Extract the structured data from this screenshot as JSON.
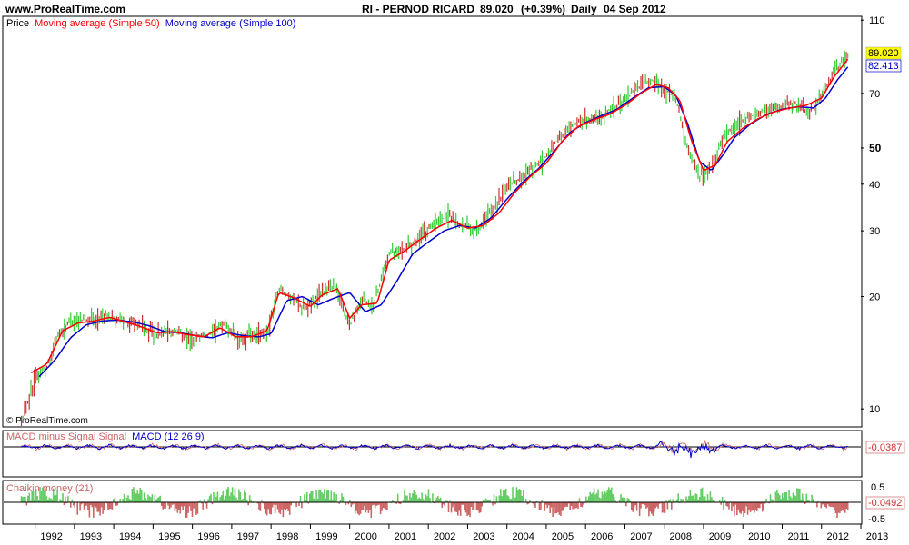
{
  "header": {
    "site": "www.ProRealTime.com",
    "instrument": "RI - PERNOD RICARD",
    "price": "89.020",
    "change": "(+0.39%)",
    "period": "Daily",
    "date": "04 Sep 2012"
  },
  "watermark": "© ProRealTime.com",
  "colors": {
    "ma50": "#ff0000",
    "ma100": "#0000cc",
    "up": "#33cc33",
    "down": "#cc3333",
    "macd_signal_diff": "#cc6666",
    "macd": "#0000cc",
    "chaikin_pos": "#66cc66",
    "chaikin_neg": "#cc6666",
    "price_tag_bg": "#ffff00"
  },
  "legend": {
    "price": "Price",
    "ma50": "Moving average (Simple 50)",
    "ma100": "Moving average (Simple 100)"
  },
  "price_tags": {
    "last_price": "89.020",
    "ma_value": "82.413"
  },
  "panels": {
    "macd": {
      "label_diff": "MACD minus Signal Signal",
      "label_macd": "MACD (12 26 9)",
      "value": "-0.0387"
    },
    "chaikin": {
      "label": "Chaikin money (21)",
      "value": "-0.0492",
      "ticks": [
        "0.5",
        "-0.5"
      ]
    }
  },
  "chart_data": {
    "type": "line",
    "scale": "log",
    "ylim": [
      9,
      112
    ],
    "y_ticks": [
      "10",
      "20",
      "30",
      "40",
      "50",
      "70",
      "110"
    ],
    "x_ticks": [
      "1992",
      "1993",
      "1994",
      "1995",
      "1996",
      "1997",
      "1998",
      "1999",
      "2000",
      "2001",
      "2002",
      "2003",
      "2004",
      "2005",
      "2006",
      "2007",
      "2008",
      "2009",
      "2010",
      "2011",
      "2012",
      "2013"
    ],
    "x_range": [
      1991.2,
      1991.7,
      2013.0
    ],
    "series": [
      {
        "name": "Price",
        "x": [
          1991.65,
          1992.0,
          1992.3,
          1992.6,
          1993.0,
          1993.4,
          1993.8,
          1994.0,
          1994.4,
          1994.8,
          1995.1,
          1995.5,
          1996.0,
          1996.4,
          1996.8,
          1997.2,
          1997.5,
          1997.9,
          1998.2,
          1998.5,
          1998.9,
          1999.3,
          1999.6,
          2000.0,
          2000.3,
          2000.6,
          2001.0,
          2001.4,
          2001.8,
          2002.1,
          2002.5,
          2002.9,
          2003.2,
          2003.6,
          2004.0,
          2004.5,
          2004.9,
          2005.3,
          2005.7,
          2006.1,
          2006.5,
          2006.9,
          2007.3,
          2007.7,
          2008.0,
          2008.3,
          2008.6,
          2008.9,
          2009.2,
          2009.5,
          2009.8,
          2010.1,
          2010.5,
          2010.9,
          2011.3,
          2011.7,
          2012.0,
          2012.3,
          2012.67
        ],
        "values": [
          9.3,
          12.0,
          13.0,
          16.0,
          17.5,
          17.2,
          17.8,
          17.5,
          17.0,
          16.5,
          15.8,
          16.2,
          15.5,
          15.8,
          17.0,
          15.2,
          15.8,
          16.0,
          21.0,
          20.0,
          18.5,
          20.5,
          21.5,
          16.8,
          19.5,
          19.0,
          26.0,
          27.0,
          29.0,
          31.0,
          33.0,
          31.0,
          30.0,
          34.0,
          39.0,
          43.0,
          46.0,
          53.0,
          58.0,
          60.0,
          62.0,
          66.0,
          72.0,
          76.0,
          72.0,
          68.0,
          50.0,
          42.0,
          44.0,
          54.0,
          57.0,
          60.0,
          63.0,
          64.0,
          66.0,
          62.0,
          69.0,
          79.0,
          89.02
        ]
      },
      {
        "name": "Moving average (Simple 50)",
        "x": [
          1991.9,
          1992.3,
          1992.7,
          1993.1,
          1993.5,
          1993.9,
          1994.3,
          1994.7,
          1995.1,
          1995.5,
          1995.9,
          1996.3,
          1996.7,
          1997.1,
          1997.5,
          1997.9,
          1998.2,
          1998.6,
          1999.0,
          1999.3,
          1999.7,
          2000.0,
          2000.3,
          2000.7,
          2001.0,
          2001.4,
          2001.8,
          2002.2,
          2002.6,
          2003.0,
          2003.4,
          2003.8,
          2004.2,
          2004.6,
          2005.0,
          2005.4,
          2005.8,
          2006.2,
          2006.6,
          2007.0,
          2007.4,
          2007.8,
          2008.1,
          2008.4,
          2008.7,
          2009.0,
          2009.3,
          2009.6,
          2010.0,
          2010.4,
          2010.8,
          2011.2,
          2011.6,
          2012.0,
          2012.3,
          2012.67
        ],
        "values": [
          12.5,
          13.2,
          16.2,
          17.0,
          17.2,
          17.6,
          17.1,
          16.6,
          16.0,
          16.1,
          15.8,
          15.6,
          16.5,
          15.6,
          15.6,
          16.2,
          20.5,
          19.8,
          18.8,
          20.2,
          21.0,
          17.5,
          19.0,
          19.2,
          25.0,
          26.5,
          28.5,
          30.5,
          32.0,
          30.5,
          31.0,
          33.5,
          38.0,
          42.0,
          45.5,
          52.0,
          57.0,
          59.5,
          61.5,
          65.0,
          70.0,
          74.0,
          72.5,
          67.0,
          52.0,
          43.5,
          45.0,
          52.0,
          56.5,
          60.0,
          62.5,
          64.0,
          65.0,
          68.0,
          77.0,
          86.5
        ]
      },
      {
        "name": "Moving average (Simple 100)",
        "x": [
          1992.1,
          1992.5,
          1992.9,
          1993.3,
          1993.7,
          1994.1,
          1994.5,
          1994.9,
          1995.3,
          1995.7,
          1996.1,
          1996.5,
          1996.9,
          1997.3,
          1997.7,
          1998.0,
          1998.4,
          1998.8,
          1999.2,
          1999.6,
          2000.0,
          2000.4,
          2000.8,
          2001.2,
          2001.6,
          2002.0,
          2002.4,
          2002.8,
          2003.2,
          2003.6,
          2004.0,
          2004.4,
          2004.8,
          2005.2,
          2005.6,
          2006.0,
          2006.4,
          2006.8,
          2007.2,
          2007.6,
          2008.0,
          2008.3,
          2008.6,
          2008.9,
          2009.2,
          2009.5,
          2009.8,
          2010.2,
          2010.6,
          2011.0,
          2011.4,
          2011.8,
          2012.1,
          2012.4,
          2012.67
        ],
        "values": [
          12.2,
          13.5,
          15.5,
          16.8,
          17.2,
          17.3,
          17.1,
          16.7,
          16.1,
          16.0,
          15.7,
          15.5,
          16.0,
          15.7,
          15.6,
          15.9,
          19.5,
          20.0,
          19.0,
          19.8,
          20.5,
          18.2,
          19.0,
          22.0,
          26.0,
          28.0,
          30.0,
          31.0,
          30.5,
          32.5,
          36.5,
          40.5,
          44.0,
          49.0,
          55.0,
          58.5,
          61.0,
          63.5,
          68.0,
          72.5,
          73.0,
          69.0,
          58.0,
          46.0,
          43.5,
          48.0,
          53.5,
          58.0,
          61.5,
          63.5,
          64.5,
          64.0,
          68.0,
          76.0,
          82.413
        ]
      }
    ]
  }
}
